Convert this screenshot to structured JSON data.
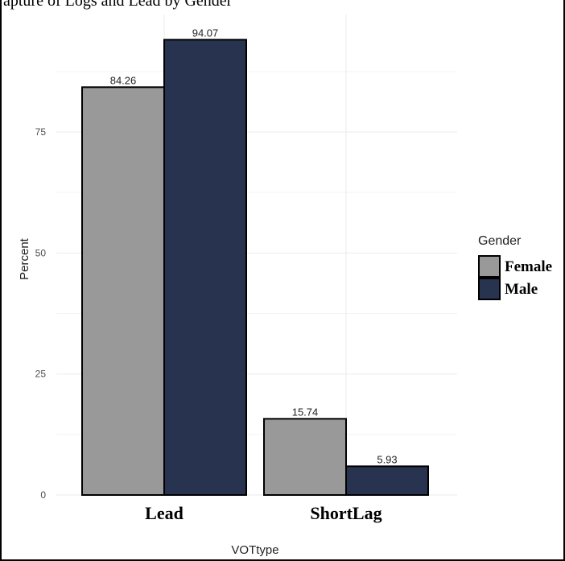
{
  "caption": "apture of Logs and Lead by Gender",
  "chart_data": {
    "type": "bar",
    "categories": [
      "Lead",
      "ShortLag"
    ],
    "series": [
      {
        "name": "Female",
        "values": [
          84.26,
          15.74
        ],
        "color": "#999999"
      },
      {
        "name": "Male",
        "values": [
          94.07,
          5.93
        ],
        "color": "#283350"
      }
    ],
    "data_labels": [
      [
        "84.26",
        "15.74"
      ],
      [
        "94.07",
        "5.93"
      ]
    ],
    "xlabel": "VOTtype",
    "ylabel": "Percent",
    "yticks": [
      0,
      25,
      50,
      75
    ],
    "ytick_labels": [
      "0",
      "25",
      "50",
      "75"
    ],
    "ylim": [
      0,
      98
    ],
    "grid": true,
    "legend": {
      "title": "Gender",
      "position": "right"
    }
  }
}
